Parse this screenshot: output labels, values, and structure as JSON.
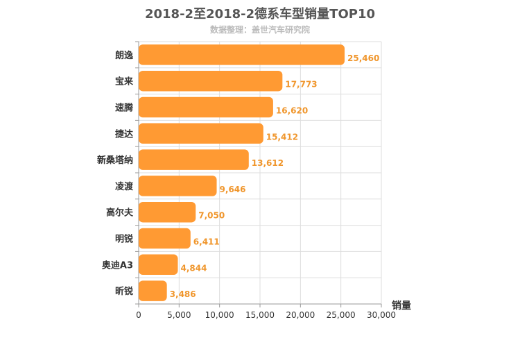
{
  "chart_data": {
    "type": "bar",
    "orientation": "horizontal",
    "title": "2018-2至2018-2德系车型销量TOP10",
    "subtitle": "数据整理：盖世汽车研究院",
    "xlabel": "销量",
    "ylabel": "",
    "categories": [
      "朗逸",
      "宝来",
      "速腾",
      "捷达",
      "新桑塔纳",
      "凌渡",
      "高尔夫",
      "明锐",
      "奥迪A3",
      "昕锐"
    ],
    "values": [
      25460,
      17773,
      16620,
      15412,
      13612,
      9646,
      7050,
      6411,
      4844,
      3486
    ],
    "value_labels": [
      "25,460",
      "17,773",
      "16,620",
      "15,412",
      "13,612",
      "9,646",
      "7,050",
      "6,411",
      "4,844",
      "3,486"
    ],
    "xlim": [
      0,
      30000
    ],
    "xticks": [
      0,
      5000,
      10000,
      15000,
      20000,
      25000,
      30000
    ],
    "xtick_labels": [
      "0",
      "5,000",
      "10,000",
      "15,000",
      "20,000",
      "25,000",
      "30,000"
    ],
    "grid": true,
    "legend": "none",
    "colors": {
      "bar": "#ff9a33",
      "value_label": "#f0962c",
      "axis": "#999999",
      "grid": "#dddddd",
      "text": "#333333"
    }
  }
}
